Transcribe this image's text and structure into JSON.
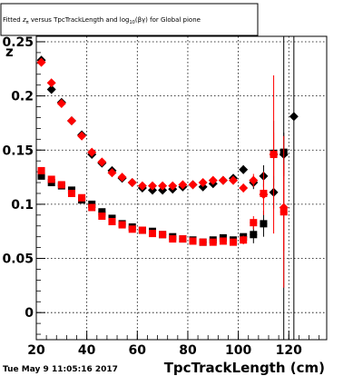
{
  "chart_data": {
    "type": "scatter",
    "title": "Fitted z_pi versus TpcTrackLength and log10(βγ) for Global pione",
    "title_parts": {
      "pre": "Fitted ",
      "z": "z",
      "z_sub": "π",
      "mid": " versus TpcTrackLength and log",
      "log_sub": "10",
      "post": "(βγ) for Global pione"
    },
    "xlabel": "TpcTrackLength (cm)",
    "ylabel": "z",
    "xlim": [
      20,
      135
    ],
    "ylim": [
      -0.025,
      0.255
    ],
    "x_ticks": [
      20,
      40,
      60,
      80,
      100,
      120
    ],
    "x_tick_labels": [
      "20",
      "40",
      "60",
      "80",
      "100",
      "120"
    ],
    "y_ticks": [
      0,
      0.05,
      0.1,
      0.15,
      0.2,
      0.25
    ],
    "y_tick_labels": [
      "0",
      "0.05",
      "0.1",
      "0.15",
      "0.2",
      "0.25"
    ],
    "grid": true,
    "series": [
      {
        "marker": "square",
        "color": "#000000",
        "points": [
          {
            "x": 22,
            "y": 0.126,
            "err": 0.002
          },
          {
            "x": 26,
            "y": 0.12,
            "err": 0.002
          },
          {
            "x": 30,
            "y": 0.117,
            "err": 0.002
          },
          {
            "x": 34,
            "y": 0.113,
            "err": 0.002
          },
          {
            "x": 38,
            "y": 0.104,
            "err": 0.002
          },
          {
            "x": 42,
            "y": 0.1,
            "err": 0.002
          },
          {
            "x": 46,
            "y": 0.093,
            "err": 0.002
          },
          {
            "x": 50,
            "y": 0.087,
            "err": 0.002
          },
          {
            "x": 54,
            "y": 0.082,
            "err": 0.002
          },
          {
            "x": 58,
            "y": 0.079,
            "err": 0.002
          },
          {
            "x": 62,
            "y": 0.076,
            "err": 0.002
          },
          {
            "x": 66,
            "y": 0.075,
            "err": 0.002
          },
          {
            "x": 70,
            "y": 0.072,
            "err": 0.002
          },
          {
            "x": 74,
            "y": 0.07,
            "err": 0.002
          },
          {
            "x": 78,
            "y": 0.068,
            "err": 0.002
          },
          {
            "x": 82,
            "y": 0.067,
            "err": 0.002
          },
          {
            "x": 86,
            "y": 0.065,
            "err": 0.002
          },
          {
            "x": 90,
            "y": 0.067,
            "err": 0.002
          },
          {
            "x": 94,
            "y": 0.069,
            "err": 0.002
          },
          {
            "x": 98,
            "y": 0.067,
            "err": 0.002
          },
          {
            "x": 102,
            "y": 0.07,
            "err": 0.003
          },
          {
            "x": 106,
            "y": 0.072,
            "err": 0.008
          },
          {
            "x": 110,
            "y": 0.082,
            "err": 0.012
          },
          {
            "x": 114,
            "y": 0.147,
            "err": 0.03
          },
          {
            "x": 118,
            "y": 0.148,
            "err": 0.19
          }
        ]
      },
      {
        "marker": "diamond",
        "color": "#000000",
        "points": [
          {
            "x": 22,
            "y": 0.233,
            "err": 0.002
          },
          {
            "x": 26,
            "y": 0.206,
            "err": 0.002
          },
          {
            "x": 30,
            "y": 0.194,
            "err": 0.002
          },
          {
            "x": 34,
            "y": 0.177,
            "err": 0.002
          },
          {
            "x": 38,
            "y": 0.164,
            "err": 0.002
          },
          {
            "x": 42,
            "y": 0.146,
            "err": 0.002
          },
          {
            "x": 46,
            "y": 0.138,
            "err": 0.002
          },
          {
            "x": 50,
            "y": 0.131,
            "err": 0.002
          },
          {
            "x": 54,
            "y": 0.124,
            "err": 0.002
          },
          {
            "x": 58,
            "y": 0.12,
            "err": 0.002
          },
          {
            "x": 62,
            "y": 0.115,
            "err": 0.002
          },
          {
            "x": 66,
            "y": 0.113,
            "err": 0.002
          },
          {
            "x": 70,
            "y": 0.113,
            "err": 0.002
          },
          {
            "x": 74,
            "y": 0.114,
            "err": 0.002
          },
          {
            "x": 78,
            "y": 0.116,
            "err": 0.002
          },
          {
            "x": 82,
            "y": 0.118,
            "err": 0.002
          },
          {
            "x": 86,
            "y": 0.116,
            "err": 0.002
          },
          {
            "x": 90,
            "y": 0.119,
            "err": 0.002
          },
          {
            "x": 94,
            "y": 0.122,
            "err": 0.002
          },
          {
            "x": 98,
            "y": 0.124,
            "err": 0.002
          },
          {
            "x": 102,
            "y": 0.132,
            "err": 0.004
          },
          {
            "x": 106,
            "y": 0.12,
            "err": 0.006
          },
          {
            "x": 110,
            "y": 0.126,
            "err": 0.01
          },
          {
            "x": 114,
            "y": 0.111,
            "err": 0.015
          },
          {
            "x": 118,
            "y": 0.146,
            "err": 0.02
          },
          {
            "x": 122,
            "y": 0.181,
            "err": 0.3
          }
        ]
      },
      {
        "marker": "square",
        "color": "#ff0000",
        "points": [
          {
            "x": 22,
            "y": 0.131,
            "err": 0.002
          },
          {
            "x": 26,
            "y": 0.123,
            "err": 0.002
          },
          {
            "x": 30,
            "y": 0.118,
            "err": 0.002
          },
          {
            "x": 34,
            "y": 0.11,
            "err": 0.002
          },
          {
            "x": 38,
            "y": 0.106,
            "err": 0.002
          },
          {
            "x": 42,
            "y": 0.097,
            "err": 0.002
          },
          {
            "x": 46,
            "y": 0.089,
            "err": 0.002
          },
          {
            "x": 50,
            "y": 0.084,
            "err": 0.002
          },
          {
            "x": 54,
            "y": 0.081,
            "err": 0.002
          },
          {
            "x": 58,
            "y": 0.077,
            "err": 0.002
          },
          {
            "x": 62,
            "y": 0.076,
            "err": 0.002
          },
          {
            "x": 66,
            "y": 0.073,
            "err": 0.002
          },
          {
            "x": 70,
            "y": 0.072,
            "err": 0.002
          },
          {
            "x": 74,
            "y": 0.068,
            "err": 0.002
          },
          {
            "x": 78,
            "y": 0.068,
            "err": 0.002
          },
          {
            "x": 82,
            "y": 0.066,
            "err": 0.002
          },
          {
            "x": 86,
            "y": 0.065,
            "err": 0.002
          },
          {
            "x": 90,
            "y": 0.065,
            "err": 0.002
          },
          {
            "x": 94,
            "y": 0.066,
            "err": 0.002
          },
          {
            "x": 98,
            "y": 0.065,
            "err": 0.002
          },
          {
            "x": 102,
            "y": 0.067,
            "err": 0.004
          },
          {
            "x": 106,
            "y": 0.083,
            "err": 0.006
          },
          {
            "x": 110,
            "y": 0.11,
            "err": 0.02
          },
          {
            "x": 114,
            "y": 0.146,
            "err": 0.073
          },
          {
            "x": 118,
            "y": 0.093,
            "err": 0.07
          }
        ]
      },
      {
        "marker": "diamond",
        "color": "#ff0000",
        "points": [
          {
            "x": 22,
            "y": 0.231,
            "err": 0.002
          },
          {
            "x": 26,
            "y": 0.212,
            "err": 0.002
          },
          {
            "x": 30,
            "y": 0.193,
            "err": 0.002
          },
          {
            "x": 34,
            "y": 0.177,
            "err": 0.002
          },
          {
            "x": 38,
            "y": 0.163,
            "err": 0.002
          },
          {
            "x": 42,
            "y": 0.148,
            "err": 0.002
          },
          {
            "x": 46,
            "y": 0.139,
            "err": 0.002
          },
          {
            "x": 50,
            "y": 0.129,
            "err": 0.002
          },
          {
            "x": 54,
            "y": 0.125,
            "err": 0.002
          },
          {
            "x": 58,
            "y": 0.12,
            "err": 0.002
          },
          {
            "x": 62,
            "y": 0.117,
            "err": 0.002
          },
          {
            "x": 66,
            "y": 0.117,
            "err": 0.002
          },
          {
            "x": 70,
            "y": 0.117,
            "err": 0.002
          },
          {
            "x": 74,
            "y": 0.117,
            "err": 0.002
          },
          {
            "x": 78,
            "y": 0.118,
            "err": 0.002
          },
          {
            "x": 82,
            "y": 0.118,
            "err": 0.002
          },
          {
            "x": 86,
            "y": 0.12,
            "err": 0.002
          },
          {
            "x": 90,
            "y": 0.122,
            "err": 0.002
          },
          {
            "x": 94,
            "y": 0.122,
            "err": 0.002
          },
          {
            "x": 98,
            "y": 0.122,
            "err": 0.002
          },
          {
            "x": 102,
            "y": 0.115,
            "err": 0.004
          },
          {
            "x": 106,
            "y": 0.122,
            "err": 0.006
          },
          {
            "x": 110,
            "y": 0.109,
            "err": 0.01
          },
          {
            "x": 114,
            "y": 0.146,
            "err": 0.02
          },
          {
            "x": 118,
            "y": 0.097,
            "err": 0.04
          }
        ]
      }
    ]
  },
  "footer": {
    "timestamp": "Tue May  9 11:05:16 2017"
  }
}
